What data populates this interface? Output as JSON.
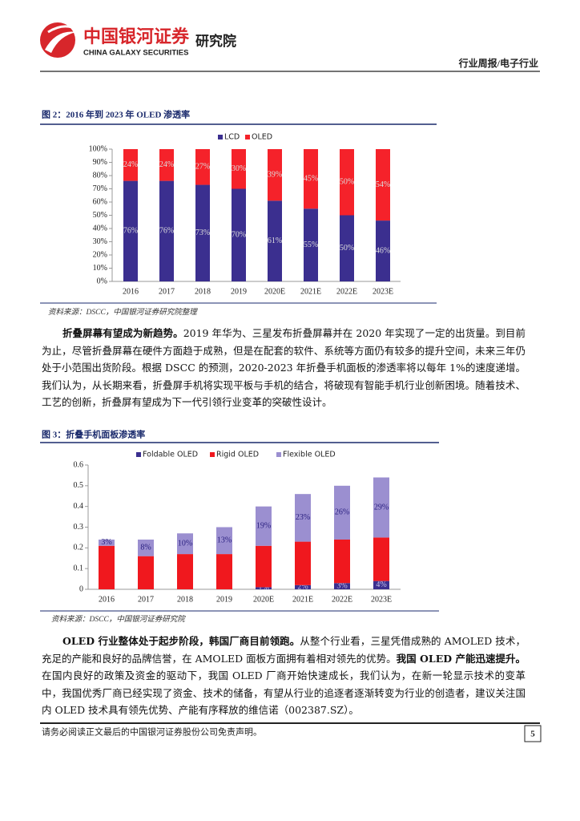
{
  "header": {
    "brand_cn": "中国银河证券",
    "brand_en": "CHINA GALAXY SECURITIES",
    "institute": "研究院",
    "section": "行业周报/电子行业"
  },
  "chart_data": [
    {
      "type": "bar",
      "stacked": true,
      "title": "图 2：2016 年到 2023 年 OLED 渗透率",
      "source": "资料来源：DSCC，中国银河证券研究院整理",
      "categories": [
        "2016",
        "2017",
        "2018",
        "2019",
        "2020E",
        "2021E",
        "2022E",
        "2023E"
      ],
      "series": [
        {
          "name": "LCD",
          "color": "#3b2f8f",
          "values": [
            76,
            76,
            73,
            70,
            61,
            55,
            50,
            46
          ],
          "value_labels": [
            "76%",
            "76%",
            "73%",
            "70%",
            "61%",
            "55%",
            "50%",
            "46%"
          ]
        },
        {
          "name": "OLED",
          "color": "#f5222a",
          "values": [
            24,
            24,
            27,
            30,
            39,
            45,
            50,
            54
          ],
          "value_labels": [
            "24%",
            "24%",
            "27%",
            "30%",
            "39%",
            "45%",
            "50%",
            "54%"
          ]
        }
      ],
      "ylim": [
        0,
        100
      ],
      "yticks": [
        {
          "value": 0,
          "label": "0%"
        },
        {
          "value": 10,
          "label": "10%"
        },
        {
          "value": 20,
          "label": "20%"
        },
        {
          "value": 30,
          "label": "30%"
        },
        {
          "value": 40,
          "label": "40%"
        },
        {
          "value": 50,
          "label": "50%"
        },
        {
          "value": 60,
          "label": "60%"
        },
        {
          "value": 70,
          "label": "70%"
        },
        {
          "value": 80,
          "label": "80%"
        },
        {
          "value": 90,
          "label": "90%"
        },
        {
          "value": 100,
          "label": "100%"
        }
      ],
      "legend": "top"
    },
    {
      "type": "bar",
      "stacked": true,
      "title": "图 3：折叠手机面板渗透率",
      "source": "资料来源：DSCC，中国银河证券研究院",
      "categories": [
        "2016",
        "2017",
        "2018",
        "2019",
        "2020E",
        "2021E",
        "2022E",
        "2023E"
      ],
      "series": [
        {
          "name": "Foldable OLED",
          "color": "#3b2f8f",
          "values": [
            null,
            null,
            null,
            null,
            0.01,
            0.02,
            0.03,
            0.04
          ],
          "value_labels": [
            null,
            null,
            null,
            null,
            "1%",
            "2%",
            "3%",
            "4%"
          ]
        },
        {
          "name": "Rigid OLED",
          "color": "#f0181e",
          "values": [
            0.21,
            0.16,
            0.17,
            0.17,
            0.2,
            0.21,
            0.21,
            0.21
          ]
        },
        {
          "name": "Flexible OLED",
          "color": "#9b8fd0",
          "values": [
            0.03,
            0.08,
            0.1,
            0.13,
            0.19,
            0.23,
            0.26,
            0.29
          ],
          "value_labels": [
            "3%",
            "8%",
            "10%",
            "13%",
            "19%",
            "23%",
            "26%",
            "29%"
          ]
        }
      ],
      "ylim": [
        0,
        0.6
      ],
      "yticks": [
        0,
        0.1,
        0.2,
        0.3,
        0.4,
        0.5,
        0.6
      ],
      "legend": "top"
    }
  ],
  "paragraphs": [
    [
      {
        "strong": "折叠屏幕有望成为新趋势。"
      },
      {
        "text": "2019 年华为、三星发布折叠屏幕并在 2020 年实现了一定的出货量。到目前为止，尽管折叠屏幕在硬件方面趋于成熟，但是在配套的软件、系统等方面仍有较多的提升空间，未来三年仍处于小范围出货阶段。根据 DSCC 的预测，2020-2023 年折叠手机面板的渗透率将以每年 1%的速度递增。我们认为，从长期来看，折叠屏手机将实现平板与手机的结合，将破现有智能手机行业创新困境。随着技术、工艺的创新，折叠屏有望成为下一代引领行业变革的突破性设计。"
      }
    ],
    [
      {
        "strong": "OLED 行业整体处于起步阶段，韩国厂商目前领跑。"
      },
      {
        "text": "从整个行业看，三星凭借成熟的 AMOLED 技术，充足的产能和良好的品牌信誉，在 AMOLED 面板方面拥有着相对领先的优势。"
      },
      {
        "strong": "我国 OLED 产能迅速提升。"
      },
      {
        "text": "在国内良好的政策及资金的驱动下，我国 OLED 厂商开始快速成长，我们认为，在新一轮显示技术的变革中，我国优秀厂商已经实现了资金、技术的储备，有望从行业的追逐者逐渐转变为行业的创造者，建议关注国内 OLED 技术具有领先优势、产能有序释放的维信诺（002387.SZ）。"
      }
    ]
  ],
  "footer": {
    "disclaimer": "请务必阅读正文最后的中国银河证券股份公司免责声明。",
    "page": "5"
  }
}
